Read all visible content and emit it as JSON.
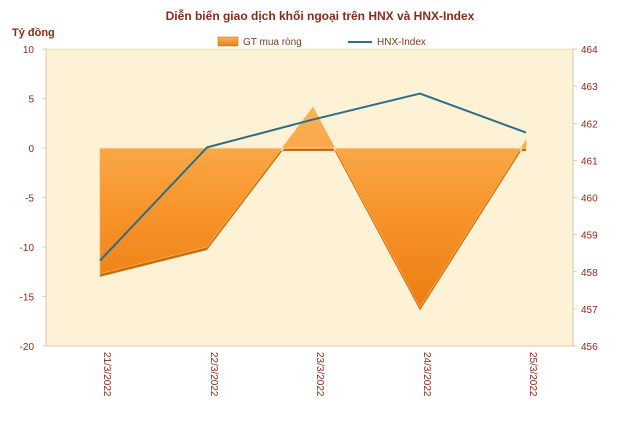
{
  "chart_data": {
    "type": "area+line",
    "title": "Diễn biến giao dịch khối ngoại trên HNX và HNX-Index",
    "left_axis_title": "Tỷ đồng",
    "categories": [
      "21/3/2022",
      "22/3/2022",
      "23/3/2022",
      "24/3/2022",
      "25/3/2022"
    ],
    "series": [
      {
        "name": "GT mua ròng",
        "axis": "left",
        "kind": "area",
        "values": [
          -12.7,
          -10.0,
          4.1,
          -16.1,
          0.8
        ],
        "color": "#f59a2e"
      },
      {
        "name": "HNX-Index",
        "axis": "right",
        "kind": "line",
        "values": [
          458.3,
          461.35,
          462.1,
          462.8,
          461.75
        ],
        "color": "#2f6e86"
      }
    ],
    "left_axis": {
      "min": -20,
      "max": 10,
      "step": 5,
      "ticks": [
        "10",
        "5",
        "0",
        "-5",
        "-10",
        "-15",
        "-20"
      ]
    },
    "right_axis": {
      "min": 456,
      "max": 464,
      "step": 1,
      "ticks": [
        "464",
        "463",
        "462",
        "461",
        "460",
        "459",
        "458",
        "457",
        "456"
      ]
    },
    "legend_position": "top",
    "grid": false,
    "plot_background": "#fdf1d6",
    "title_color": "#8a2b1a",
    "axis_text_color": "#8a2b1a"
  }
}
